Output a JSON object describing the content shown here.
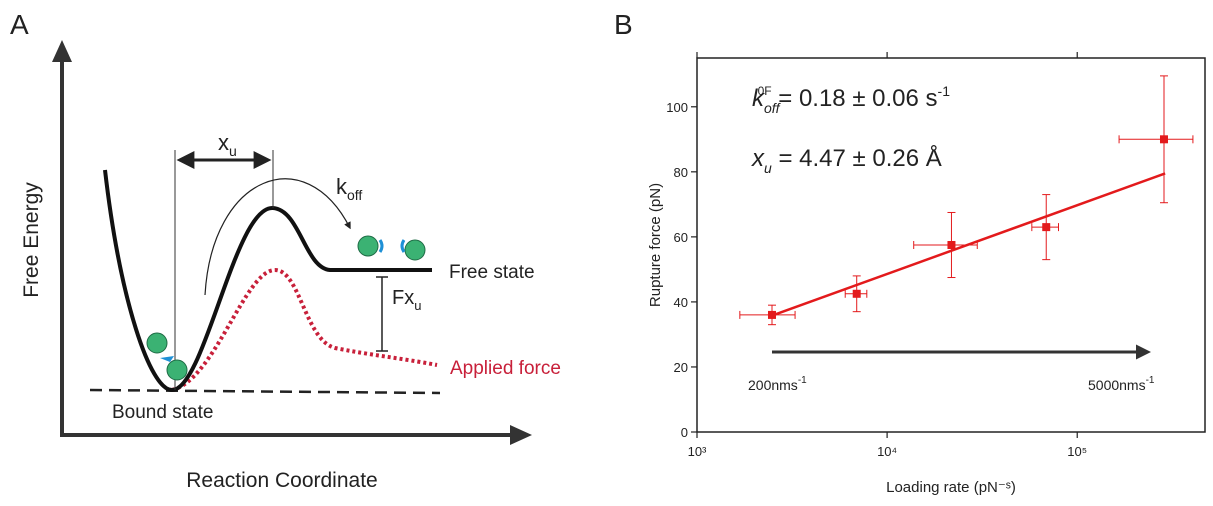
{
  "diagram": {
    "panel_label": "A",
    "y_label": "Free Energy",
    "x_label": "Reaction Coordinate",
    "distance_label": {
      "main": "x",
      "sub": "u"
    },
    "rate_label": {
      "main": "k",
      "sub": "off"
    },
    "free_state": "Free state",
    "force_label": {
      "main": "Fx",
      "sub": "u"
    },
    "applied_force": "Applied force",
    "bound_state": "Bound state"
  },
  "chart_data": {
    "type": "scatter",
    "panel_label": "B",
    "x_label": "Loading rate (pN⁻ˢ)",
    "y_label": "Rupture force (pN)",
    "x_scale": "log",
    "xlim": [
      1000,
      470000
    ],
    "ylim": [
      0,
      115
    ],
    "xticks": [
      {
        "value": 1000,
        "label": "10³"
      },
      {
        "value": 10000,
        "label": "10⁴"
      },
      {
        "value": 100000,
        "label": "10⁵"
      }
    ],
    "yticks": [
      0,
      20,
      40,
      60,
      80,
      100
    ],
    "x": [
      2480,
      6920,
      21800,
      68700,
      286000
    ],
    "values": [
      36,
      42.5,
      57.5,
      63,
      90
    ],
    "xerr": [
      800,
      900,
      8000,
      11000,
      120000
    ],
    "yerr": [
      3,
      5.5,
      10,
      10,
      19.5
    ],
    "color": "#e31a1c",
    "fit": {
      "x": [
        2400,
        290000
      ],
      "values": [
        35.5,
        79.5
      ],
      "color": "#e31a1c"
    },
    "annotations": {
      "rate": {
        "main": "k",
        "sub": "off",
        "sup": "0F",
        "rest": " = 0.18 ± 0.06 s",
        "unit_sup": "-1"
      },
      "distance": {
        "main": "x",
        "sub": "u",
        "rest": " = 4.47 ± 0.26 Å"
      },
      "low_speed": {
        "main": "200nms",
        "sup": "-1"
      },
      "high_speed": {
        "main": "5000nms",
        "sup": "-1"
      }
    }
  }
}
